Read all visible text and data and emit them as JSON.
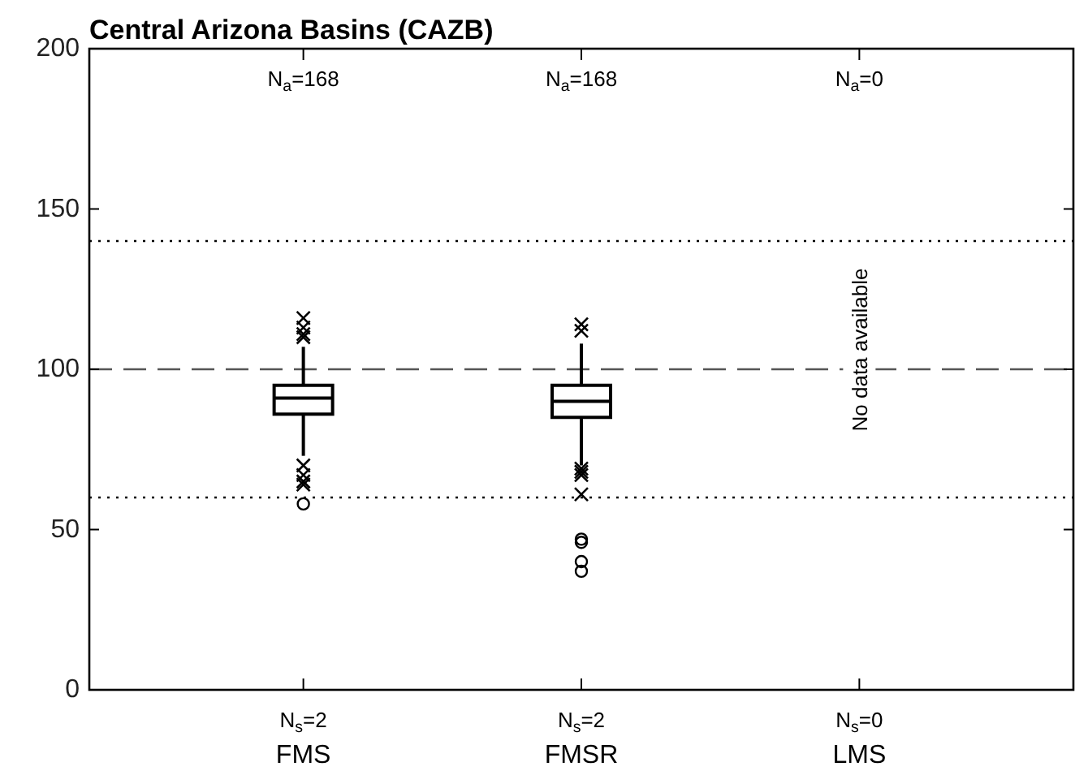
{
  "chart_data": {
    "type": "box",
    "title": "Central Arizona Basins (CAZB)",
    "categories": [
      "N$_{s}$=2\nFMS",
      "N$_{s}$=2\nFMSR",
      "N$_{s}$=0\nLMS"
    ],
    "boxes": [
      {
        "low": 73,
        "q1": 86,
        "median": 91,
        "q3": 95,
        "high": 107,
        "outliers": [
          116,
          113,
          111,
          110,
          70,
          67,
          65,
          64
        ]
      },
      {
        "low": 70,
        "q1": 85,
        "median": 90,
        "q3": 95,
        "high": 108,
        "outliers": [
          114,
          112,
          69,
          68,
          67,
          61
        ]
      },
      null
    ],
    "series": [
      {
        "type": "scatter",
        "x": [
          "N$_{s}$=2\nFMS",
          "N$_{s}$=2\nFMSR",
          "N$_{s}$=2\nFMSR",
          "N$_{s}$=2\nFMSR",
          "N$_{s}$=2\nFMSR"
        ],
        "values": [
          58,
          47,
          46,
          40,
          37
        ],
        "color": "#000000",
        "marker": "circle"
      }
    ],
    "ylim": [
      0,
      200
    ],
    "yticks": [
      0,
      50,
      100,
      150,
      200
    ],
    "grid": false,
    "ref_lines": [
      {
        "axis": "y",
        "value": 100,
        "line_style": "dashed",
        "color": "#555555"
      },
      {
        "axis": "y",
        "value": 140,
        "line_style": "dotted",
        "color": "#000000"
      },
      {
        "axis": "y",
        "value": 60,
        "line_style": "dotted",
        "color": "#000000"
      }
    ],
    "annotations": [
      "N$_{a}$=168",
      "N$_{a}$=168",
      "N$_{a}$=0",
      "No data available"
    ]
  }
}
